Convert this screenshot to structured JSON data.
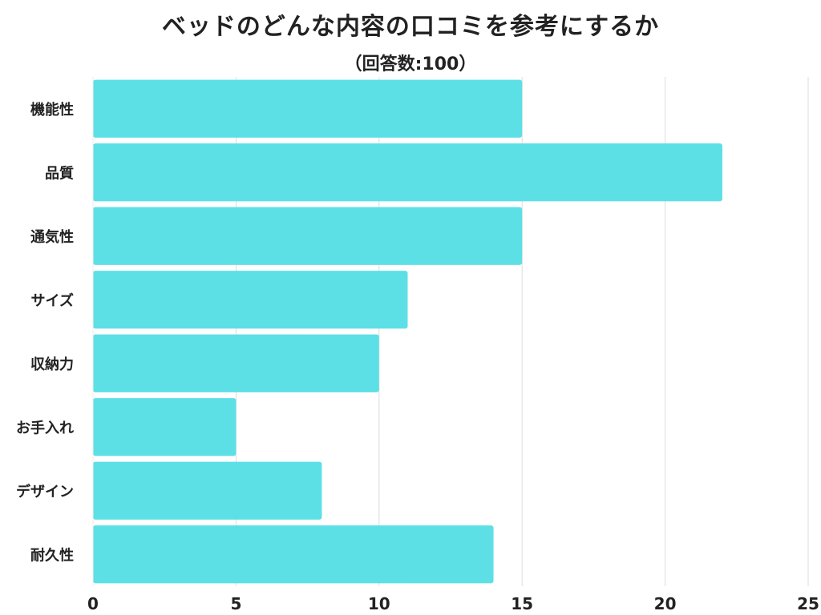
{
  "chart_data": {
    "type": "bar",
    "orientation": "horizontal",
    "title": "ベッドのどんな内容の口コミを参考にするか",
    "subtitle": "（回答数:100）",
    "categories": [
      "機能性",
      "品質",
      "通気性",
      "サイズ",
      "収納力",
      "お手入れ",
      "デザイン",
      "耐久性"
    ],
    "values": [
      15,
      22,
      15,
      11,
      10,
      5,
      8,
      14
    ],
    "xlim": [
      0,
      25
    ],
    "xticks": [
      0,
      5,
      10,
      15,
      20,
      25
    ],
    "xlabel": "",
    "ylabel": "",
    "grid": true,
    "bar_color": "#5ce0e6",
    "grid_color": "#dddddd"
  }
}
